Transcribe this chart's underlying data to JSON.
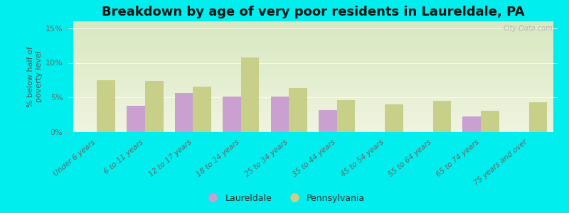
{
  "title": "Breakdown by age of very poor residents in Laureldale, PA",
  "ylabel": "% below half of\npoverty level",
  "categories": [
    "Under 6 years",
    "6 to 11 years",
    "12 to 17 years",
    "18 to 24 years",
    "25 to 34 years",
    "35 to 44 years",
    "45 to 54 years",
    "55 to 64 years",
    "65 to 74 years",
    "75 years and over"
  ],
  "laureldale": [
    0,
    3.8,
    5.6,
    5.1,
    5.1,
    3.2,
    0,
    0,
    2.3,
    0
  ],
  "pennsylvania": [
    7.5,
    7.4,
    6.6,
    10.8,
    6.4,
    4.6,
    4.0,
    4.5,
    3.1,
    4.3
  ],
  "laureldale_color": "#c9a0d0",
  "pennsylvania_color": "#c8cf88",
  "background_outer": "#00eeee",
  "background_plot_top": "#d8e8c0",
  "background_plot_bottom": "#f0f4e0",
  "ylim": [
    0,
    16
  ],
  "yticks": [
    0,
    5,
    10,
    15
  ],
  "ytick_labels": [
    "0%",
    "5%",
    "10%",
    "15%"
  ],
  "bar_width": 0.38,
  "title_fontsize": 13,
  "legend_labels": [
    "Laureldale",
    "Pennsylvania"
  ],
  "watermark": "City-Data.com"
}
